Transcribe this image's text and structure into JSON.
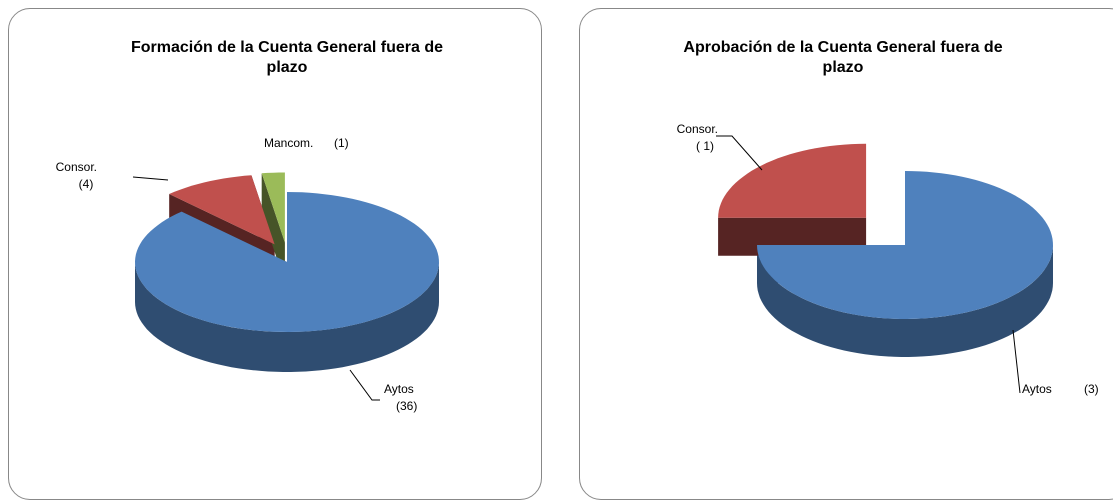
{
  "chart_data": [
    {
      "type": "pie3d",
      "title": "Formación de la Cuenta General fuera de plazo",
      "categories": [
        "Aytos",
        "Consor.",
        "Mancom."
      ],
      "values": [
        36,
        4,
        1
      ],
      "value_labels": [
        "(36)",
        "(4)",
        "(1)"
      ],
      "colors": [
        "#4f81bd",
        "#c0504d",
        "#9bbb59"
      ]
    },
    {
      "type": "pie3d",
      "title": "Aprobación de la Cuenta General fuera de plazo",
      "categories": [
        "Aytos",
        "Consor."
      ],
      "values": [
        3,
        1
      ],
      "value_labels": [
        "(3)",
        "( 1)"
      ],
      "colors": [
        "#4f81bd",
        "#c0504d"
      ]
    }
  ]
}
